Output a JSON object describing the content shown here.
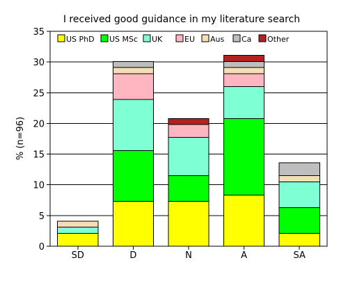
{
  "chart_data": {
    "type": "bar",
    "stacked": true,
    "title": "I received good guidance in my literature search",
    "xlabel": "",
    "ylabel": "% (n=96)",
    "categories": [
      "SD",
      "D",
      "N",
      "A",
      "SA"
    ],
    "ylim": [
      0,
      35
    ],
    "yticks": [
      0,
      5,
      10,
      15,
      20,
      25,
      30,
      35
    ],
    "grid": "horizontal",
    "legend_position": "top-left",
    "series": [
      {
        "name": "US PhD",
        "color": "#ffff00",
        "values": [
          2.1,
          7.3,
          7.3,
          8.3,
          2.1
        ]
      },
      {
        "name": "US MSc",
        "color": "#00ff00",
        "values": [
          0.0,
          8.3,
          4.2,
          12.5,
          4.2
        ]
      },
      {
        "name": "UK",
        "color": "#7fffd4",
        "values": [
          1.0,
          8.3,
          6.2,
          5.2,
          4.2
        ]
      },
      {
        "name": "EU",
        "color": "#ffb6c1",
        "values": [
          0.0,
          4.2,
          2.1,
          2.1,
          0.0
        ]
      },
      {
        "name": "Aus",
        "color": "#f5deb3",
        "values": [
          1.0,
          1.0,
          0.0,
          1.0,
          1.0
        ]
      },
      {
        "name": "Ca",
        "color": "#bebebe",
        "values": [
          0.0,
          1.0,
          0.0,
          1.0,
          2.1
        ]
      },
      {
        "name": "Other",
        "color": "#b22222",
        "values": [
          0.0,
          0.0,
          1.0,
          1.0,
          0.0
        ]
      }
    ]
  }
}
